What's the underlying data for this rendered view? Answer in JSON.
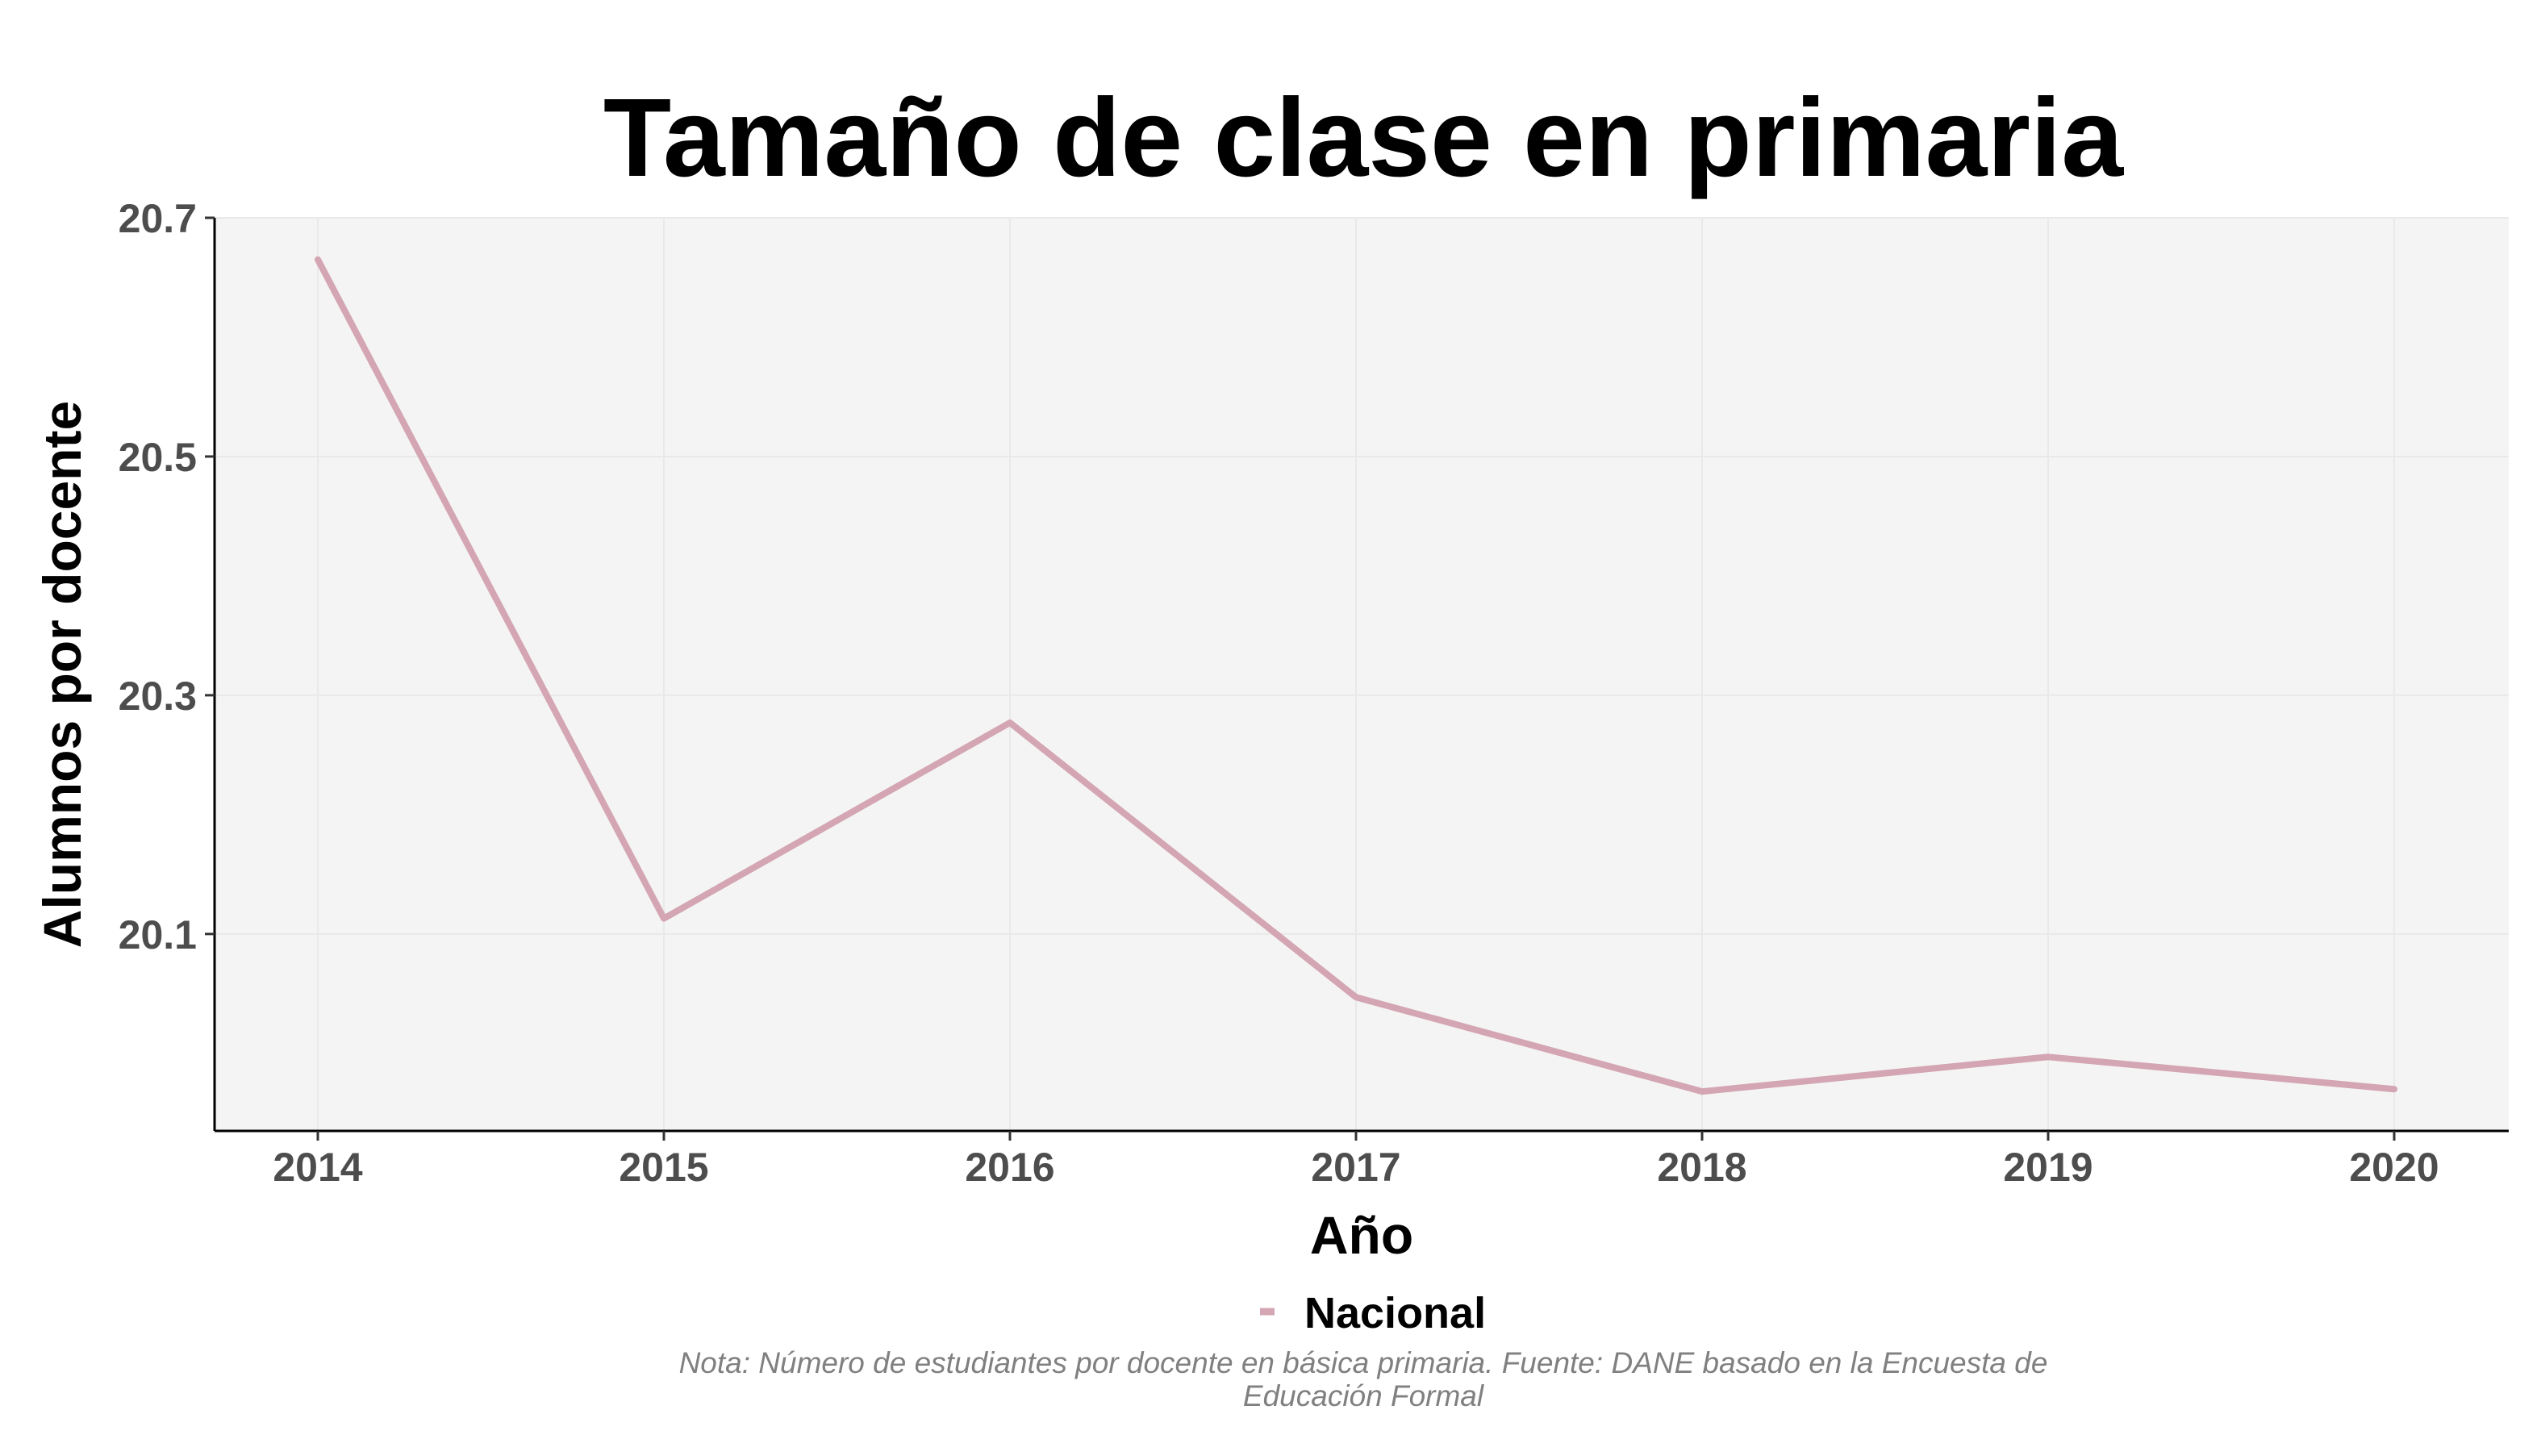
{
  "chart_data": {
    "type": "line",
    "title": "Tamaño de clase en primaria",
    "xlabel": "Año",
    "ylabel": "Alumnos por docente",
    "x": [
      "2014",
      "2015",
      "2016",
      "2017",
      "2018",
      "2019",
      "2020"
    ],
    "series": [
      {
        "name": "Nacional",
        "color": "#d4a5b2",
        "values": [
          20.665,
          20.113,
          20.277,
          20.047,
          19.968,
          19.997,
          19.97
        ]
      }
    ],
    "yticks": [
      "20.7",
      "20.5",
      "20.3",
      "20.1"
    ],
    "ylim": [
      19.935,
      20.7
    ],
    "grid": true,
    "legend_position": "bottom",
    "caption": [
      "Nota: Número de estudiantes por docente en básica primaria. Fuente: DANE basado en la Encuesta de",
      "Educación Formal"
    ]
  }
}
